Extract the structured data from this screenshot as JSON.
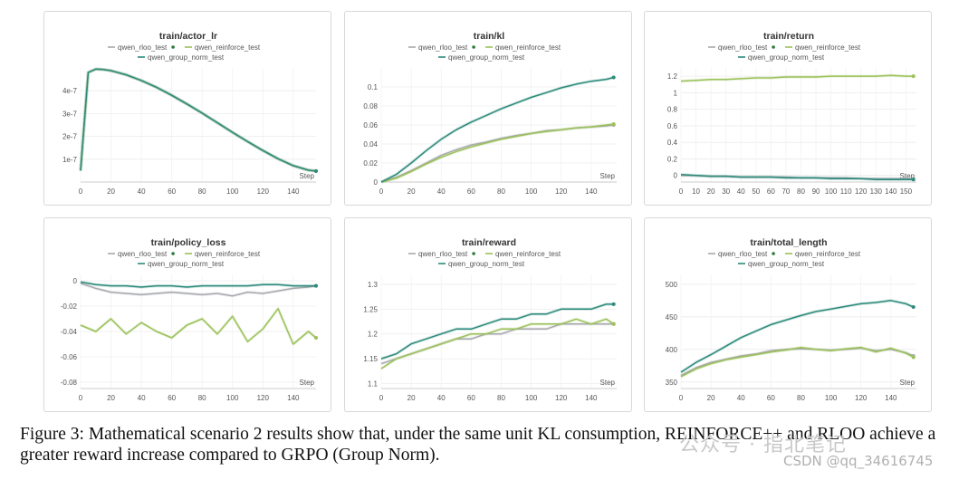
{
  "legend": {
    "rloo": "qwen_rloo_test",
    "reinforce": "qwen_reinforce_test",
    "group": "qwen_group_norm_test"
  },
  "colors": {
    "rloo": "#a7a9ad",
    "reinforce": "#9bc15a",
    "group": "#2c8a7b"
  },
  "caption": "Figure 3: Mathematical scenario 2 results show that, under the same unit KL consumption, REINFORCE++ and RLOO achieve a greater reward increase compared to GRPO (Group Norm).",
  "watermark": {
    "brand": "公众号 · 指北笔记",
    "handle": "CSDN @qq_34616745"
  },
  "chart_data": [
    {
      "type": "line",
      "title": "train/actor_lr",
      "xlabel": "Step",
      "xlim": [
        0,
        155
      ],
      "ylim": [
        0,
        5e-07
      ],
      "xticks": [
        0,
        20,
        40,
        60,
        80,
        100,
        120,
        140
      ],
      "yticks": [
        1e-07,
        2e-07,
        3e-07,
        4e-07
      ],
      "yticklabels": [
        "1e-7",
        "2e-7",
        "3e-7",
        "4e-7"
      ],
      "series": [
        {
          "key": "rloo",
          "x": [
            0,
            5,
            10,
            15,
            20,
            30,
            40,
            50,
            60,
            70,
            80,
            90,
            100,
            110,
            120,
            130,
            140,
            150,
            155
          ],
          "y": [
            5e-08,
            4.8e-07,
            4.95e-07,
            4.93e-07,
            4.88e-07,
            4.7e-07,
            4.45e-07,
            4.15e-07,
            3.8e-07,
            3.42e-07,
            3.02e-07,
            2.6e-07,
            2.18e-07,
            1.77e-07,
            1.38e-07,
            1.02e-07,
            7.2e-08,
            5.2e-08,
            4.8e-08
          ]
        },
        {
          "key": "reinforce",
          "x": [
            0,
            5,
            10,
            15,
            20,
            30,
            40,
            50,
            60,
            70,
            80,
            90,
            100,
            110,
            120,
            130,
            140,
            150,
            155
          ],
          "y": [
            5e-08,
            4.8e-07,
            4.95e-07,
            4.93e-07,
            4.88e-07,
            4.7e-07,
            4.45e-07,
            4.15e-07,
            3.8e-07,
            3.42e-07,
            3.02e-07,
            2.6e-07,
            2.18e-07,
            1.77e-07,
            1.38e-07,
            1.02e-07,
            7.2e-08,
            5.2e-08,
            4.8e-08
          ]
        },
        {
          "key": "group",
          "x": [
            0,
            5,
            10,
            15,
            20,
            30,
            40,
            50,
            60,
            70,
            80,
            90,
            100,
            110,
            120,
            130,
            140,
            150,
            155
          ],
          "y": [
            5e-08,
            4.8e-07,
            4.95e-07,
            4.93e-07,
            4.88e-07,
            4.7e-07,
            4.45e-07,
            4.15e-07,
            3.8e-07,
            3.42e-07,
            3.02e-07,
            2.6e-07,
            2.18e-07,
            1.77e-07,
            1.38e-07,
            1.02e-07,
            7.2e-08,
            5.2e-08,
            4.8e-08
          ]
        }
      ]
    },
    {
      "type": "line",
      "title": "train/kl",
      "xlabel": "Step",
      "xlim": [
        0,
        157
      ],
      "ylim": [
        0,
        0.12
      ],
      "xticks": [
        0,
        20,
        40,
        60,
        80,
        100,
        120,
        140
      ],
      "yticks": [
        0,
        0.02,
        0.04,
        0.06,
        0.08,
        0.1
      ],
      "yticklabels": [
        "0",
        "0.02",
        "0.04",
        "0.06",
        "0.08",
        "0.1"
      ],
      "series": [
        {
          "key": "rloo",
          "x": [
            0,
            10,
            20,
            30,
            40,
            50,
            60,
            70,
            80,
            90,
            100,
            110,
            120,
            130,
            140,
            150,
            155
          ],
          "y": [
            0,
            0.005,
            0.012,
            0.02,
            0.028,
            0.034,
            0.039,
            0.042,
            0.046,
            0.049,
            0.051,
            0.054,
            0.055,
            0.057,
            0.058,
            0.059,
            0.06
          ]
        },
        {
          "key": "reinforce",
          "x": [
            0,
            10,
            20,
            30,
            40,
            50,
            60,
            70,
            80,
            90,
            100,
            110,
            120,
            130,
            140,
            150,
            155
          ],
          "y": [
            0,
            0.004,
            0.011,
            0.019,
            0.026,
            0.032,
            0.037,
            0.041,
            0.045,
            0.048,
            0.051,
            0.053,
            0.055,
            0.057,
            0.058,
            0.06,
            0.061
          ]
        },
        {
          "key": "group",
          "x": [
            0,
            10,
            20,
            30,
            40,
            50,
            60,
            70,
            80,
            90,
            100,
            110,
            120,
            130,
            140,
            150,
            155
          ],
          "y": [
            0,
            0.008,
            0.02,
            0.033,
            0.045,
            0.055,
            0.063,
            0.07,
            0.077,
            0.083,
            0.089,
            0.094,
            0.099,
            0.103,
            0.106,
            0.108,
            0.11
          ]
        }
      ]
    },
    {
      "type": "line",
      "title": "train/return",
      "xlabel": "Step",
      "xlim": [
        0,
        157
      ],
      "ylim": [
        -0.08,
        1.3
      ],
      "xticks": [
        0,
        10,
        20,
        30,
        40,
        50,
        60,
        70,
        80,
        90,
        100,
        110,
        120,
        130,
        140,
        150
      ],
      "yticks": [
        0,
        0.2,
        0.4,
        0.6,
        0.8,
        1,
        1.2
      ],
      "yticklabels": [
        "0",
        "0.2",
        "0.4",
        "0.6",
        "0.8",
        "1",
        "1.2"
      ],
      "series": [
        {
          "key": "rloo",
          "x": [
            0,
            10,
            20,
            30,
            40,
            50,
            60,
            70,
            80,
            90,
            100,
            110,
            120,
            130,
            140,
            150,
            155
          ],
          "y": [
            0,
            0,
            -0.01,
            -0.01,
            -0.02,
            -0.02,
            -0.02,
            -0.02,
            -0.03,
            -0.03,
            -0.03,
            -0.03,
            -0.04,
            -0.04,
            -0.04,
            -0.04,
            -0.04
          ]
        },
        {
          "key": "reinforce",
          "x": [
            0,
            10,
            20,
            30,
            40,
            50,
            60,
            70,
            80,
            90,
            100,
            110,
            120,
            130,
            140,
            150,
            155
          ],
          "y": [
            1.14,
            1.15,
            1.16,
            1.16,
            1.17,
            1.18,
            1.18,
            1.19,
            1.19,
            1.19,
            1.2,
            1.2,
            1.2,
            1.2,
            1.21,
            1.2,
            1.2
          ]
        },
        {
          "key": "group",
          "x": [
            0,
            10,
            20,
            30,
            40,
            50,
            60,
            70,
            80,
            90,
            100,
            110,
            120,
            130,
            140,
            150,
            155
          ],
          "y": [
            0.01,
            0,
            -0.01,
            -0.01,
            -0.02,
            -0.02,
            -0.02,
            -0.03,
            -0.03,
            -0.03,
            -0.04,
            -0.04,
            -0.04,
            -0.05,
            -0.05,
            -0.05,
            -0.05
          ]
        }
      ]
    },
    {
      "type": "line",
      "title": "train/policy_loss",
      "xlabel": "Step",
      "xlim": [
        0,
        155
      ],
      "ylim": [
        -0.085,
        0.005
      ],
      "xticks": [
        0,
        20,
        40,
        60,
        80,
        100,
        120,
        140
      ],
      "yticks": [
        0,
        -0.02,
        -0.04,
        -0.06,
        -0.08
      ],
      "yticklabels": [
        "0",
        "-0.02",
        "-0.04",
        "-0.06",
        "-0.08"
      ],
      "series": [
        {
          "key": "rloo",
          "x": [
            0,
            10,
            20,
            30,
            40,
            50,
            60,
            70,
            80,
            90,
            100,
            110,
            120,
            130,
            140,
            150,
            155
          ],
          "y": [
            -0.002,
            -0.006,
            -0.009,
            -0.01,
            -0.011,
            -0.01,
            -0.009,
            -0.01,
            -0.011,
            -0.01,
            -0.012,
            -0.009,
            -0.01,
            -0.008,
            -0.006,
            -0.005,
            -0.004
          ]
        },
        {
          "key": "reinforce",
          "x": [
            0,
            10,
            20,
            30,
            40,
            50,
            60,
            70,
            80,
            90,
            100,
            110,
            120,
            130,
            140,
            150,
            155
          ],
          "y": [
            -0.035,
            -0.04,
            -0.03,
            -0.042,
            -0.033,
            -0.04,
            -0.045,
            -0.035,
            -0.03,
            -0.042,
            -0.028,
            -0.048,
            -0.038,
            -0.022,
            -0.05,
            -0.04,
            -0.045
          ]
        },
        {
          "key": "group",
          "x": [
            0,
            10,
            20,
            30,
            40,
            50,
            60,
            70,
            80,
            90,
            100,
            110,
            120,
            130,
            140,
            150,
            155
          ],
          "y": [
            -0.001,
            -0.003,
            -0.004,
            -0.004,
            -0.005,
            -0.004,
            -0.004,
            -0.005,
            -0.004,
            -0.004,
            -0.004,
            -0.004,
            -0.003,
            -0.003,
            -0.004,
            -0.004,
            -0.004
          ]
        }
      ]
    },
    {
      "type": "line",
      "title": "train/reward",
      "xlabel": "Step",
      "xlim": [
        0,
        157
      ],
      "ylim": [
        1.09,
        1.32
      ],
      "xticks": [
        0,
        20,
        40,
        60,
        80,
        100,
        120,
        140
      ],
      "yticks": [
        1.1,
        1.15,
        1.2,
        1.25,
        1.3
      ],
      "yticklabels": [
        "1.1",
        "1.15",
        "1.2",
        "1.25",
        "1.3"
      ],
      "series": [
        {
          "key": "rloo",
          "x": [
            0,
            10,
            20,
            30,
            40,
            50,
            60,
            70,
            80,
            90,
            100,
            110,
            120,
            130,
            140,
            150,
            155
          ],
          "y": [
            1.14,
            1.15,
            1.16,
            1.17,
            1.18,
            1.19,
            1.19,
            1.2,
            1.2,
            1.21,
            1.21,
            1.21,
            1.22,
            1.22,
            1.22,
            1.22,
            1.22
          ]
        },
        {
          "key": "reinforce",
          "x": [
            0,
            10,
            20,
            30,
            40,
            50,
            60,
            70,
            80,
            90,
            100,
            110,
            120,
            130,
            140,
            150,
            155
          ],
          "y": [
            1.13,
            1.15,
            1.16,
            1.17,
            1.18,
            1.19,
            1.2,
            1.2,
            1.21,
            1.21,
            1.22,
            1.22,
            1.22,
            1.23,
            1.22,
            1.23,
            1.22
          ]
        },
        {
          "key": "group",
          "x": [
            0,
            10,
            20,
            30,
            40,
            50,
            60,
            70,
            80,
            90,
            100,
            110,
            120,
            130,
            140,
            150,
            155
          ],
          "y": [
            1.15,
            1.16,
            1.18,
            1.19,
            1.2,
            1.21,
            1.21,
            1.22,
            1.23,
            1.23,
            1.24,
            1.24,
            1.25,
            1.25,
            1.25,
            1.26,
            1.26
          ]
        }
      ]
    },
    {
      "type": "line",
      "title": "train/total_length",
      "xlabel": "Step",
      "xlim": [
        0,
        157
      ],
      "ylim": [
        340,
        515
      ],
      "xticks": [
        0,
        20,
        40,
        60,
        80,
        100,
        120,
        140
      ],
      "yticks": [
        350,
        400,
        450,
        500
      ],
      "yticklabels": [
        "350",
        "400",
        "450",
        "500"
      ],
      "series": [
        {
          "key": "rloo",
          "x": [
            0,
            10,
            20,
            30,
            40,
            50,
            60,
            70,
            80,
            90,
            100,
            110,
            120,
            130,
            140,
            150,
            155
          ],
          "y": [
            360,
            372,
            380,
            385,
            390,
            393,
            398,
            400,
            401,
            400,
            399,
            400,
            402,
            398,
            400,
            395,
            390
          ]
        },
        {
          "key": "reinforce",
          "x": [
            0,
            10,
            20,
            30,
            40,
            50,
            60,
            70,
            80,
            90,
            100,
            110,
            120,
            130,
            140,
            150,
            155
          ],
          "y": [
            358,
            370,
            378,
            384,
            388,
            392,
            396,
            399,
            403,
            400,
            398,
            401,
            403,
            396,
            402,
            394,
            388
          ]
        },
        {
          "key": "group",
          "x": [
            0,
            10,
            20,
            30,
            40,
            50,
            60,
            70,
            80,
            90,
            100,
            110,
            120,
            130,
            140,
            150,
            155
          ],
          "y": [
            365,
            380,
            392,
            405,
            418,
            428,
            438,
            445,
            452,
            458,
            462,
            466,
            470,
            472,
            475,
            470,
            465
          ]
        }
      ]
    }
  ]
}
